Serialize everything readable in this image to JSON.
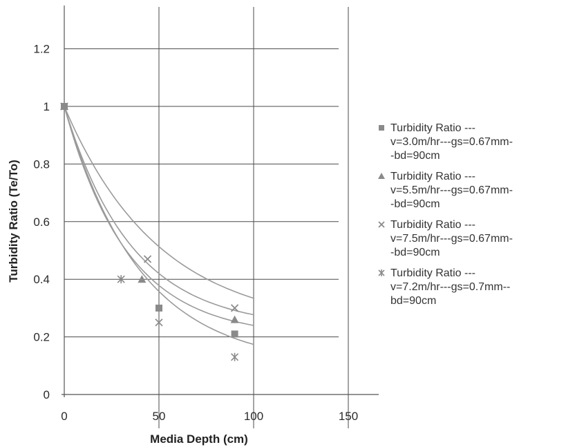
{
  "chart_data": {
    "type": "scatter",
    "xlabel": "Media Depth  (cm)",
    "ylabel": "Turbidity Ratio  (Te/To)",
    "xlim": [
      0,
      165
    ],
    "ylim": [
      0,
      1.3
    ],
    "x_ticks": [
      "0",
      "50",
      "100",
      "150"
    ],
    "y_ticks": [
      "0",
      "0.2",
      "0.4",
      "0.6",
      "0.8",
      "1",
      "1.2"
    ],
    "grid": true,
    "legend_position": "right",
    "series": [
      {
        "name": "Turbidity Ratio ---v=3.0m/hr---gs=0.67mm--bd=90cm",
        "legend_lines": [
          "Turbidity Ratio ---",
          "v=3.0m/hr---gs=0.67mm-",
          "-bd=90cm"
        ],
        "marker": "square",
        "x": [
          0,
          50,
          90
        ],
        "y": [
          1.0,
          0.3,
          0.21
        ],
        "trend": {
          "a": 0.8,
          "k": 0.03,
          "c": 0.2
        },
        "color": "#8a8a8a"
      },
      {
        "name": "Turbidity Ratio ---v=5.5m/hr---gs=0.67mm--bd=90cm",
        "legend_lines": [
          "Turbidity Ratio ---",
          "v=5.5m/hr---gs=0.67mm-",
          "-bd=90cm"
        ],
        "marker": "triangle",
        "x": [
          0,
          41,
          90
        ],
        "y": [
          1.0,
          0.4,
          0.26
        ],
        "trend": {
          "a": 0.77,
          "k": 0.028,
          "c": 0.23
        },
        "color": "#8a8a8a"
      },
      {
        "name": "Turbidity Ratio ---v=7.5m/hr---gs=0.67mm--bd=90cm",
        "legend_lines": [
          "Turbidity Ratio ---",
          "v=7.5m/hr---gs=0.67mm-",
          "-bd=90cm"
        ],
        "marker": "x",
        "x": [
          0,
          44,
          90
        ],
        "y": [
          1.0,
          0.47,
          0.3
        ],
        "trend": {
          "a": 0.77,
          "k": 0.02,
          "c": 0.23
        },
        "color": "#8a8a8a"
      },
      {
        "name": "Turbidity Ratio ---v=7.2m/hr---gs=0.7mm--bd=90cm",
        "legend_lines": [
          "Turbidity Ratio ---",
          "v=7.2m/hr---gs=0.7mm--",
          "bd=90cm"
        ],
        "marker": "star",
        "x": [
          0,
          30,
          50,
          90
        ],
        "y": [
          1.0,
          0.4,
          0.25,
          0.13
        ],
        "trend": {
          "a": 0.9,
          "k": 0.025,
          "c": 0.1
        },
        "color": "#8a8a8a"
      }
    ]
  },
  "colors": {
    "grid": "#4a4a4a",
    "axis": "#555555",
    "curve": "#9a9a9a",
    "marker": "#8a8a8a"
  }
}
